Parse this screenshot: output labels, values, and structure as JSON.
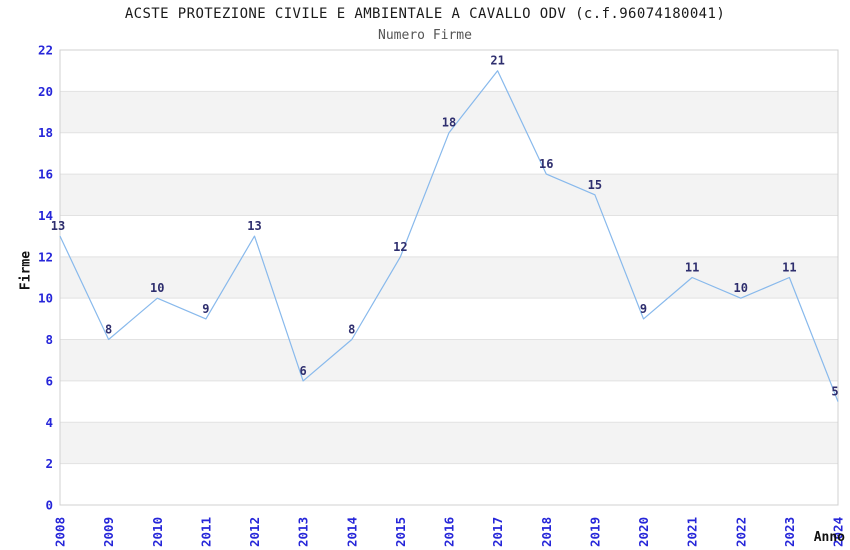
{
  "chart_data": {
    "type": "line",
    "title": "ACSTE PROTEZIONE CIVILE E AMBIENTALE A CAVALLO ODV (c.f.96074180041)",
    "subtitle": "Numero Firme",
    "xlabel": "Anno",
    "ylabel": "Firme",
    "x": [
      "2008",
      "2009",
      "2010",
      "2011",
      "2012",
      "2013",
      "2014",
      "2015",
      "2016",
      "2017",
      "2018",
      "2019",
      "2020",
      "2021",
      "2022",
      "2023",
      "2024"
    ],
    "values": [
      13,
      8,
      10,
      9,
      13,
      6,
      8,
      12,
      18,
      21,
      16,
      15,
      9,
      11,
      10,
      11,
      5
    ],
    "ylim": [
      0,
      22
    ],
    "ytick_step": 2,
    "grid": "horizontal",
    "legend": "none",
    "point_labels_visible": true,
    "colors": {
      "line": "#88b9ec",
      "tick_label": "#2626d9",
      "point_label": "#2e2e6e",
      "band_fill": "#f3f3f3",
      "grid_line": "#e2e2e2",
      "plot_border": "#d0d0d0",
      "title": "#1a1a1a",
      "subtitle": "#555555",
      "axis_title": "#111111"
    }
  }
}
